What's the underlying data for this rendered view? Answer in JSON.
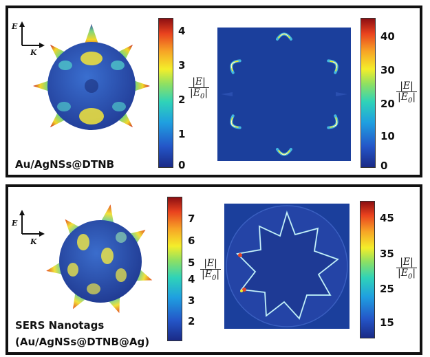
{
  "panels": [
    {
      "caption": "Au/AgNSs@DTNB",
      "axes": {
        "e": "E",
        "k": "K"
      },
      "colorbar_left_ticks": [
        "4",
        "3",
        "2",
        "1",
        "0"
      ],
      "colorbar_right_ticks": [
        "40",
        "30",
        "20",
        "10",
        "0"
      ],
      "label": {
        "num": "|E|",
        "den": "|E0|"
      }
    },
    {
      "caption_line1": "SERS Nanotags",
      "caption_line2": "(Au/AgNSs@DTNB@Ag)",
      "axes": {
        "e": "E",
        "k": "K"
      },
      "colorbar_left_ticks": [
        "7",
        "6",
        "5",
        "4",
        "3",
        "2"
      ],
      "colorbar_right_ticks": [
        "45",
        "35",
        "25",
        "15"
      ],
      "label": {
        "num": "|E|",
        "den": "|E0|"
      }
    }
  ],
  "colors": {
    "field_bg": "#1b3f9c",
    "particle": "#2a55b8",
    "hotspot": "#f4ee2a",
    "frame": "#111111"
  }
}
